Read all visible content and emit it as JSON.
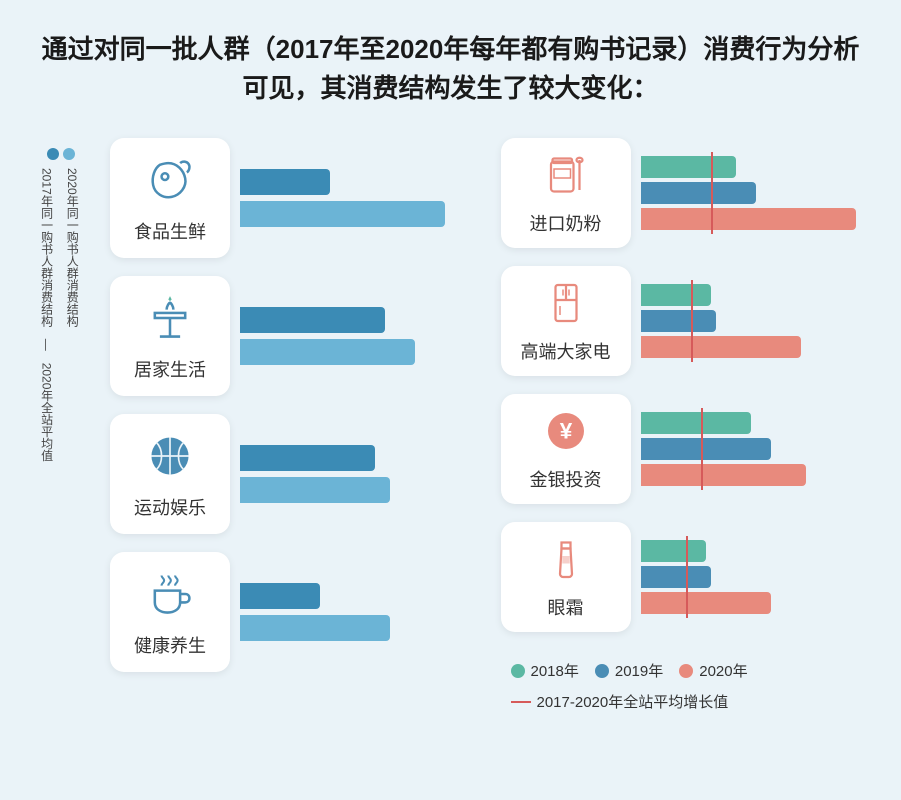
{
  "title": "通过对同一批人群（2017年至2020年每年都有购书记录）消费行为分析可见，其消费结构发生了较大变化：",
  "colors": {
    "bar2017": "#3b8bb5",
    "bar2020": "#6bb4d6",
    "year2018": "#5bb8a3",
    "year2019": "#4a8db5",
    "year2020": "#e88a7d",
    "avgLine": "#d65a5a",
    "bg": "#eaf3f8",
    "card": "#ffffff",
    "text": "#333333"
  },
  "legendLeft": {
    "dot1": "2017年同一购书人群消费结构",
    "dot2": "2020年同一购书人群消费结构",
    "avg": "2020年全站平均值"
  },
  "leftCategories": [
    {
      "label": "食品生鲜",
      "icon": "meat",
      "bars": [
        {
          "color": "#3b8bb5",
          "len": 90
        },
        {
          "color": "#6bb4d6",
          "len": 205
        }
      ]
    },
    {
      "label": "居家生活",
      "icon": "table",
      "bars": [
        {
          "color": "#3b8bb5",
          "len": 145
        },
        {
          "color": "#6bb4d6",
          "len": 175
        }
      ]
    },
    {
      "label": "运动娱乐",
      "icon": "basketball",
      "bars": [
        {
          "color": "#3b8bb5",
          "len": 135
        },
        {
          "color": "#6bb4d6",
          "len": 150
        }
      ]
    },
    {
      "label": "健康养生",
      "icon": "cup",
      "bars": [
        {
          "color": "#3b8bb5",
          "len": 80
        },
        {
          "color": "#6bb4d6",
          "len": 150
        }
      ]
    }
  ],
  "rightCategories": [
    {
      "label": "进口奶粉",
      "icon": "jar",
      "bars": [
        {
          "color": "#5bb8a3",
          "len": 95
        },
        {
          "color": "#4a8db5",
          "len": 115
        },
        {
          "color": "#e88a7d",
          "len": 215
        }
      ],
      "avg": 70
    },
    {
      "label": "高端大家电",
      "icon": "fridge",
      "bars": [
        {
          "color": "#5bb8a3",
          "len": 70
        },
        {
          "color": "#4a8db5",
          "len": 75
        },
        {
          "color": "#e88a7d",
          "len": 160
        }
      ],
      "avg": 50
    },
    {
      "label": "金银投资",
      "icon": "yen",
      "bars": [
        {
          "color": "#5bb8a3",
          "len": 110
        },
        {
          "color": "#4a8db5",
          "len": 130
        },
        {
          "color": "#e88a7d",
          "len": 165
        }
      ],
      "avg": 60
    },
    {
      "label": "眼霜",
      "icon": "tube",
      "bars": [
        {
          "color": "#5bb8a3",
          "len": 65
        },
        {
          "color": "#4a8db5",
          "len": 70
        },
        {
          "color": "#e88a7d",
          "len": 130
        }
      ],
      "avg": 45
    }
  ],
  "legendRight": {
    "y2018": "2018年",
    "y2019": "2019年",
    "y2020": "2020年",
    "avg": "2017-2020年全站平均增长值"
  }
}
